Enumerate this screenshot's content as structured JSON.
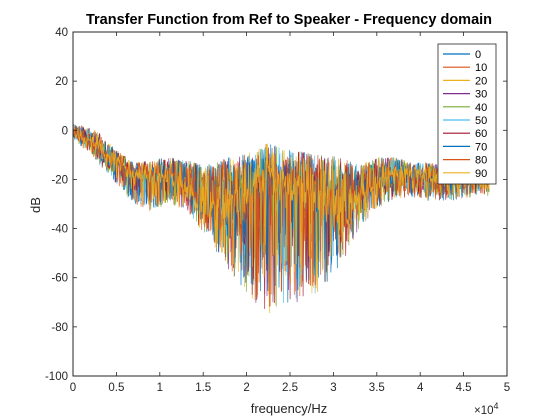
{
  "chart_data": {
    "type": "line",
    "title": "Transfer Function from Ref to Speaker - Frequency domain",
    "xlabel": "frequency/Hz",
    "ylabel": "dB",
    "xlim": [
      0,
      50000
    ],
    "ylim": [
      -100,
      40
    ],
    "x_tick_values": [
      0,
      5000,
      10000,
      15000,
      20000,
      25000,
      30000,
      35000,
      40000,
      45000,
      50000
    ],
    "x_tick_labels": [
      "0",
      "0.5",
      "1",
      "1.5",
      "2",
      "2.5",
      "3",
      "3.5",
      "4",
      "4.5",
      "5"
    ],
    "x_exponent_label": "×10",
    "x_exponent_power": "4",
    "y_tick_values": [
      -100,
      -80,
      -60,
      -40,
      -20,
      0,
      20,
      40
    ],
    "y_tick_labels": [
      "-100",
      "-80",
      "-60",
      "-40",
      "-20",
      "0",
      "20",
      "40"
    ],
    "grid": false,
    "legend_position": "top-right",
    "x_range_of_data": [
      0,
      48000
    ],
    "envelope": {
      "x": [
        0,
        1000,
        2000,
        3000,
        5000,
        7000,
        9000,
        11000,
        13000,
        15000,
        17000,
        19000,
        21000,
        22500,
        24000,
        25000,
        27000,
        29000,
        31000,
        33000,
        35000,
        37000,
        39000,
        41000,
        43000,
        45000,
        47000,
        48000
      ],
      "median": [
        0,
        -3,
        -4,
        -8,
        -14,
        -20,
        -21,
        -19,
        -22,
        -28,
        -28,
        -30,
        -27,
        -25,
        -26,
        -27,
        -26,
        -28,
        -30,
        -24,
        -20,
        -19,
        -20,
        -21,
        -21,
        -20,
        -20,
        -21
      ],
      "upper": [
        3,
        2,
        1,
        -1,
        -8,
        -13,
        -12,
        -11,
        -12,
        -14,
        -12,
        -10,
        -8,
        -5,
        -7,
        -8,
        -9,
        -10,
        -11,
        -14,
        -11,
        -11,
        -13,
        -13,
        -15,
        -14,
        -15,
        -16
      ],
      "lower": [
        -3,
        -7,
        -9,
        -14,
        -22,
        -30,
        -33,
        -30,
        -33,
        -42,
        -52,
        -62,
        -70,
        -75,
        -72,
        -70,
        -70,
        -63,
        -55,
        -40,
        -32,
        -28,
        -27,
        -29,
        -29,
        -28,
        -26,
        -27
      ]
    },
    "series": [
      {
        "name": "0",
        "color": "#0072BD",
        "phase": 0.0
      },
      {
        "name": "10",
        "color": "#D95319",
        "phase": 0.6
      },
      {
        "name": "20",
        "color": "#EDB120",
        "phase": 1.2
      },
      {
        "name": "30",
        "color": "#7E2F8E",
        "phase": 1.8
      },
      {
        "name": "40",
        "color": "#77AC30",
        "phase": 2.4
      },
      {
        "name": "50",
        "color": "#4DBEEE",
        "phase": 3.0
      },
      {
        "name": "60",
        "color": "#A2142F",
        "phase": 3.6
      },
      {
        "name": "70",
        "color": "#0072BD",
        "phase": 4.2
      },
      {
        "name": "80",
        "color": "#D95319",
        "phase": 4.8
      },
      {
        "name": "90",
        "color": "#EDB120",
        "phase": 5.4
      }
    ]
  }
}
